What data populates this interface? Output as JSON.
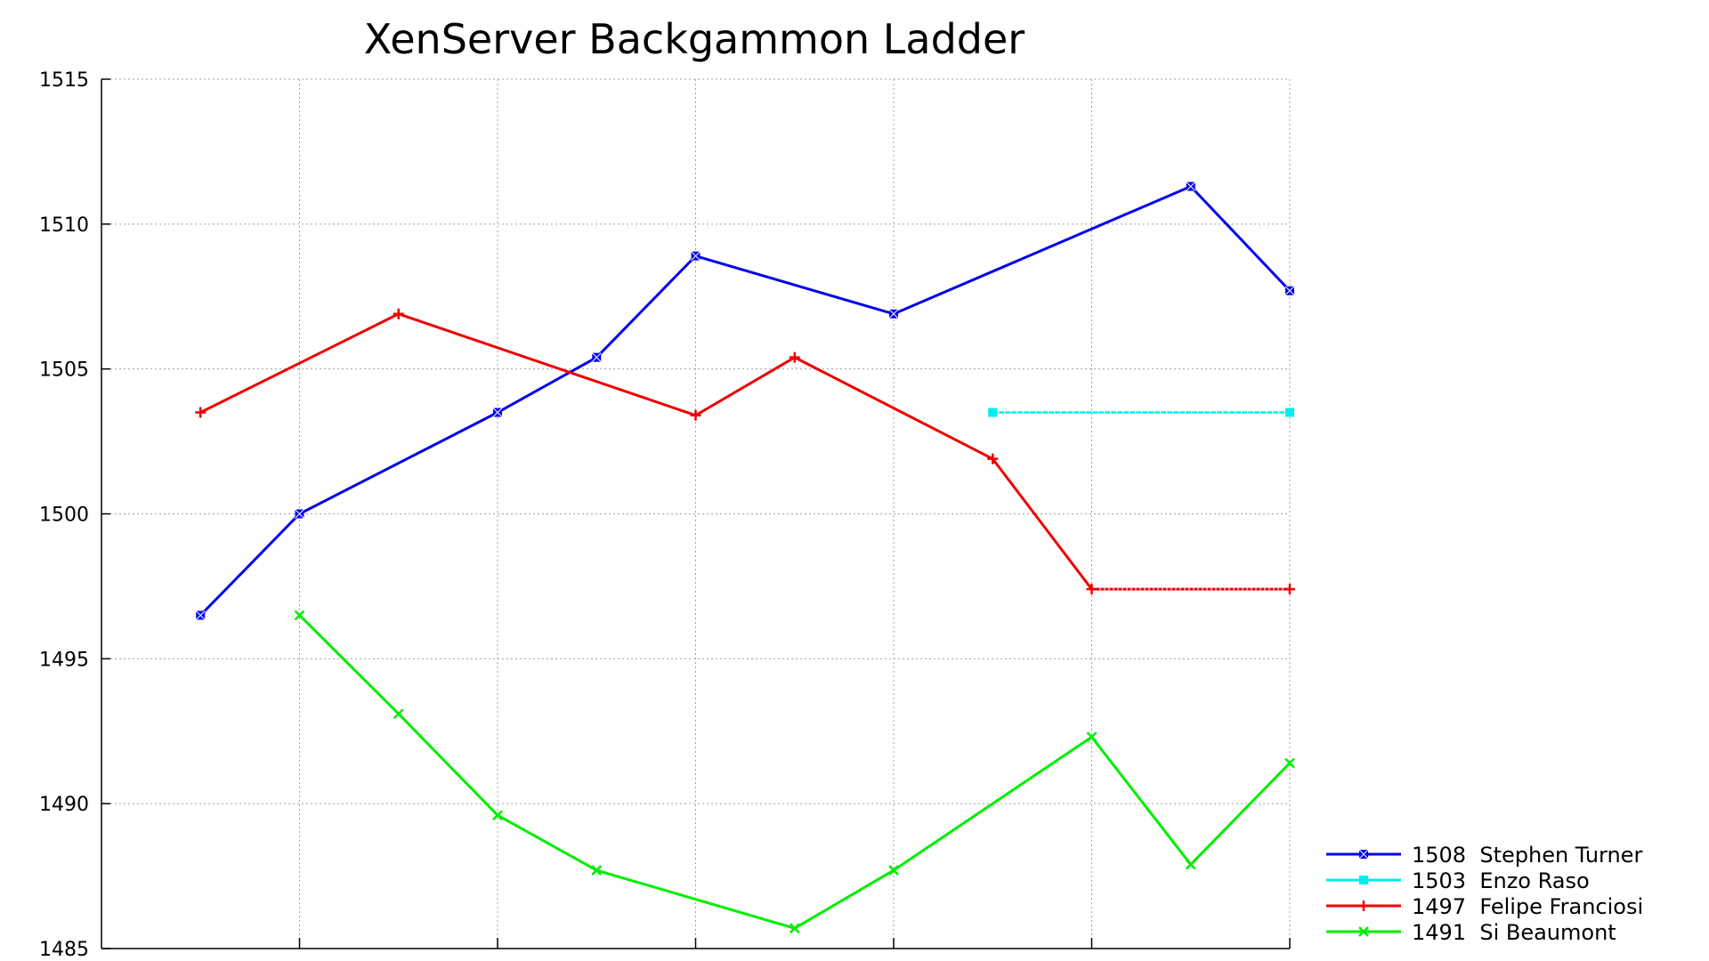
{
  "chart_data": {
    "type": "line",
    "title": "XenServer Backgammon Ladder",
    "xlabel": "",
    "ylabel": "",
    "xlim": [
      0,
      12
    ],
    "ylim": [
      1485,
      1515
    ],
    "yticks": [
      1485,
      1490,
      1495,
      1500,
      1505,
      1510,
      1515
    ],
    "xticks": [
      0,
      2,
      4,
      6,
      8,
      10,
      12
    ],
    "grid": true,
    "legend_position": "bottom-right outside",
    "series": [
      {
        "name": "1508  Stephen Turner",
        "color": "#0000ee",
        "marker": "filled-square-x",
        "x": [
          1,
          2,
          4,
          5,
          6,
          8,
          11,
          12
        ],
        "y": [
          1496.5,
          1500.0,
          1503.5,
          1505.4,
          1508.9,
          1506.9,
          1511.3,
          1507.7
        ]
      },
      {
        "name": "1503  Enzo Raso",
        "color": "#00eeee",
        "marker": "filled-square",
        "dashed_tail": true,
        "x": [
          9,
          12
        ],
        "y": [
          1503.5,
          1503.5
        ]
      },
      {
        "name": "1497  Felipe Franciosi",
        "color": "#ee0000",
        "marker": "plus",
        "dashed_from_index": 4,
        "x": [
          1,
          3,
          6,
          7,
          9,
          10,
          12
        ],
        "y": [
          1503.5,
          1506.9,
          1503.4,
          1505.4,
          1501.9,
          1497.4,
          1497.4
        ]
      },
      {
        "name": "1491  Si Beaumont",
        "color": "#00ee00",
        "marker": "cross",
        "x": [
          2,
          3,
          4,
          5,
          7,
          8,
          10,
          11,
          12
        ],
        "y": [
          1496.5,
          1493.1,
          1489.6,
          1487.7,
          1485.7,
          1487.7,
          1492.3,
          1487.9,
          1491.4
        ]
      }
    ]
  }
}
